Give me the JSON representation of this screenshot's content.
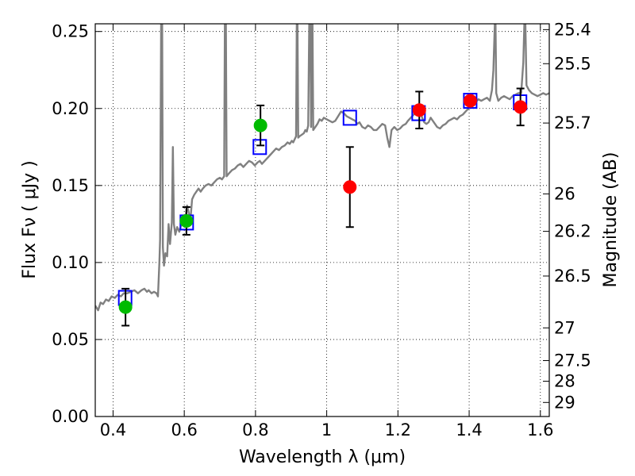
{
  "chart_data": {
    "type": "scatter",
    "xlabel": "Wavelength  λ (μm)",
    "ylabel": "Flux  Fν  ( μJy )",
    "y2label": "Magnitude (AB)",
    "xlim": [
      0.35,
      1.625
    ],
    "ylim": [
      0.0,
      0.255
    ],
    "x_ticks": [
      {
        "value": 0.4,
        "label": "0.4"
      },
      {
        "value": 0.6,
        "label": "0.6"
      },
      {
        "value": 0.8,
        "label": "0.8"
      },
      {
        "value": 1.0,
        "label": "1"
      },
      {
        "value": 1.2,
        "label": "1.2"
      },
      {
        "value": 1.4,
        "label": "1.4"
      },
      {
        "value": 1.6,
        "label": "1.6"
      }
    ],
    "y_ticks": [
      {
        "value": 0.0,
        "label": "0.00"
      },
      {
        "value": 0.05,
        "label": "0.05"
      },
      {
        "value": 0.1,
        "label": "0.10"
      },
      {
        "value": 0.15,
        "label": "0.15"
      },
      {
        "value": 0.2,
        "label": "0.20"
      },
      {
        "value": 0.25,
        "label": "0.25"
      }
    ],
    "magnitude_ticks": [
      {
        "mag": 25.4,
        "label": "25.4"
      },
      {
        "mag": 25.5,
        "label": "25.5"
      },
      {
        "mag": 25.7,
        "label": "25.7"
      },
      {
        "mag": 26.0,
        "label": "26"
      },
      {
        "mag": 26.2,
        "label": "26.2"
      },
      {
        "mag": 26.5,
        "label": "26.5"
      },
      {
        "mag": 27.0,
        "label": "27"
      },
      {
        "mag": 27.5,
        "label": "27.5"
      },
      {
        "mag": 28.0,
        "label": "28"
      },
      {
        "mag": 29.0,
        "label": "29"
      }
    ],
    "grid": true,
    "colors": {
      "spectrum": "#808080",
      "model_boxes": "#0000ff",
      "optical_points": "#00bb00",
      "infrared_points": "#ff0000",
      "error_bars": "#000000"
    },
    "series": [
      {
        "kind": "spectrum",
        "points": [
          [
            0.35,
            0.072
          ],
          [
            0.358,
            0.069
          ],
          [
            0.365,
            0.074
          ],
          [
            0.372,
            0.073
          ],
          [
            0.38,
            0.076
          ],
          [
            0.388,
            0.075
          ],
          [
            0.396,
            0.078
          ],
          [
            0.405,
            0.077
          ],
          [
            0.413,
            0.079
          ],
          [
            0.422,
            0.078
          ],
          [
            0.43,
            0.08
          ],
          [
            0.44,
            0.08
          ],
          [
            0.45,
            0.081
          ],
          [
            0.46,
            0.082
          ],
          [
            0.47,
            0.08
          ],
          [
            0.48,
            0.082
          ],
          [
            0.488,
            0.083
          ],
          [
            0.495,
            0.081
          ],
          [
            0.5,
            0.082
          ],
          [
            0.508,
            0.08
          ],
          [
            0.515,
            0.081
          ],
          [
            0.522,
            0.08
          ],
          [
            0.526,
            0.078
          ],
          [
            0.53,
            0.1
          ],
          [
            0.532,
            0.115
          ],
          [
            0.535,
            0.255
          ],
          [
            0.538,
            0.255
          ],
          [
            0.54,
            0.11
          ],
          [
            0.543,
            0.098
          ],
          [
            0.547,
            0.106
          ],
          [
            0.552,
            0.104
          ],
          [
            0.556,
            0.125
          ],
          [
            0.56,
            0.112
          ],
          [
            0.565,
            0.126
          ],
          [
            0.568,
            0.175
          ],
          [
            0.571,
            0.125
          ],
          [
            0.575,
            0.118
          ],
          [
            0.58,
            0.123
          ],
          [
            0.586,
            0.12
          ],
          [
            0.592,
            0.125
          ],
          [
            0.598,
            0.124
          ],
          [
            0.604,
            0.13
          ],
          [
            0.608,
            0.137
          ],
          [
            0.612,
            0.133
          ],
          [
            0.617,
            0.127
          ],
          [
            0.622,
            0.141
          ],
          [
            0.628,
            0.144
          ],
          [
            0.634,
            0.146
          ],
          [
            0.64,
            0.148
          ],
          [
            0.646,
            0.146
          ],
          [
            0.652,
            0.148
          ],
          [
            0.66,
            0.15
          ],
          [
            0.668,
            0.151
          ],
          [
            0.676,
            0.15
          ],
          [
            0.684,
            0.152
          ],
          [
            0.692,
            0.154
          ],
          [
            0.7,
            0.155
          ],
          [
            0.706,
            0.154
          ],
          [
            0.712,
            0.156
          ],
          [
            0.714,
            0.255
          ],
          [
            0.717,
            0.255
          ],
          [
            0.719,
            0.156
          ],
          [
            0.726,
            0.158
          ],
          [
            0.734,
            0.16
          ],
          [
            0.742,
            0.161
          ],
          [
            0.75,
            0.163
          ],
          [
            0.758,
            0.164
          ],
          [
            0.766,
            0.162
          ],
          [
            0.774,
            0.164
          ],
          [
            0.782,
            0.166
          ],
          [
            0.79,
            0.165
          ],
          [
            0.798,
            0.163
          ],
          [
            0.806,
            0.165
          ],
          [
            0.812,
            0.166
          ],
          [
            0.818,
            0.164
          ],
          [
            0.826,
            0.166
          ],
          [
            0.834,
            0.168
          ],
          [
            0.842,
            0.17
          ],
          [
            0.85,
            0.172
          ],
          [
            0.858,
            0.174
          ],
          [
            0.866,
            0.173
          ],
          [
            0.874,
            0.175
          ],
          [
            0.882,
            0.176
          ],
          [
            0.89,
            0.178
          ],
          [
            0.896,
            0.177
          ],
          [
            0.902,
            0.179
          ],
          [
            0.906,
            0.178
          ],
          [
            0.91,
            0.18
          ],
          [
            0.914,
            0.182
          ],
          [
            0.916,
            0.255
          ],
          [
            0.918,
            0.255
          ],
          [
            0.92,
            0.181
          ],
          [
            0.924,
            0.182
          ],
          [
            0.93,
            0.183
          ],
          [
            0.936,
            0.184
          ],
          [
            0.94,
            0.186
          ],
          [
            0.944,
            0.185
          ],
          [
            0.948,
            0.189
          ],
          [
            0.951,
            0.255
          ],
          [
            0.954,
            0.255
          ],
          [
            0.956,
            0.188
          ],
          [
            0.958,
            0.255
          ],
          [
            0.96,
            0.255
          ],
          [
            0.962,
            0.186
          ],
          [
            0.968,
            0.188
          ],
          [
            0.974,
            0.19
          ],
          [
            0.98,
            0.193
          ],
          [
            0.986,
            0.192
          ],
          [
            0.992,
            0.194
          ],
          [
            1.0,
            0.193
          ],
          [
            1.008,
            0.192
          ],
          [
            1.016,
            0.191
          ],
          [
            1.024,
            0.192
          ],
          [
            1.032,
            0.195
          ],
          [
            1.04,
            0.198
          ],
          [
            1.048,
            0.197
          ],
          [
            1.056,
            0.195
          ],
          [
            1.064,
            0.194
          ],
          [
            1.072,
            0.193
          ],
          [
            1.08,
            0.192
          ],
          [
            1.086,
            0.19
          ],
          [
            1.092,
            0.191
          ],
          [
            1.1,
            0.188
          ],
          [
            1.108,
            0.187
          ],
          [
            1.116,
            0.189
          ],
          [
            1.124,
            0.188
          ],
          [
            1.132,
            0.186
          ],
          [
            1.14,
            0.186
          ],
          [
            1.148,
            0.188
          ],
          [
            1.156,
            0.19
          ],
          [
            1.164,
            0.189
          ],
          [
            1.17,
            0.181
          ],
          [
            1.176,
            0.175
          ],
          [
            1.182,
            0.186
          ],
          [
            1.19,
            0.188
          ],
          [
            1.198,
            0.186
          ],
          [
            1.206,
            0.187
          ],
          [
            1.214,
            0.189
          ],
          [
            1.222,
            0.19
          ],
          [
            1.228,
            0.192
          ],
          [
            1.236,
            0.194
          ],
          [
            1.244,
            0.196
          ],
          [
            1.25,
            0.197
          ],
          [
            1.256,
            0.199
          ],
          [
            1.262,
            0.2
          ],
          [
            1.268,
            0.194
          ],
          [
            1.274,
            0.191
          ],
          [
            1.28,
            0.19
          ],
          [
            1.286,
            0.191
          ],
          [
            1.292,
            0.194
          ],
          [
            1.298,
            0.192
          ],
          [
            1.304,
            0.19
          ],
          [
            1.31,
            0.188
          ],
          [
            1.318,
            0.187
          ],
          [
            1.326,
            0.189
          ],
          [
            1.334,
            0.19
          ],
          [
            1.342,
            0.192
          ],
          [
            1.35,
            0.193
          ],
          [
            1.358,
            0.194
          ],
          [
            1.366,
            0.193
          ],
          [
            1.374,
            0.195
          ],
          [
            1.382,
            0.196
          ],
          [
            1.39,
            0.198
          ],
          [
            1.398,
            0.2
          ],
          [
            1.404,
            0.202
          ],
          [
            1.41,
            0.203
          ],
          [
            1.418,
            0.204
          ],
          [
            1.426,
            0.206
          ],
          [
            1.434,
            0.205
          ],
          [
            1.442,
            0.206
          ],
          [
            1.45,
            0.207
          ],
          [
            1.458,
            0.205
          ],
          [
            1.464,
            0.212
          ],
          [
            1.468,
            0.225
          ],
          [
            1.472,
            0.255
          ],
          [
            1.474,
            0.255
          ],
          [
            1.476,
            0.21
          ],
          [
            1.482,
            0.205
          ],
          [
            1.49,
            0.207
          ],
          [
            1.498,
            0.208
          ],
          [
            1.506,
            0.207
          ],
          [
            1.514,
            0.206
          ],
          [
            1.522,
            0.208
          ],
          [
            1.53,
            0.209
          ],
          [
            1.538,
            0.21
          ],
          [
            1.546,
            0.21
          ],
          [
            1.552,
            0.23
          ],
          [
            1.555,
            0.255
          ],
          [
            1.558,
            0.255
          ],
          [
            1.561,
            0.215
          ],
          [
            1.568,
            0.212
          ],
          [
            1.576,
            0.21
          ],
          [
            1.584,
            0.209
          ],
          [
            1.592,
            0.208
          ],
          [
            1.6,
            0.209
          ],
          [
            1.608,
            0.21
          ],
          [
            1.616,
            0.209
          ],
          [
            1.625,
            0.21
          ]
        ]
      },
      {
        "kind": "model_boxes",
        "points": [
          {
            "x": 0.434,
            "y": 0.077
          },
          {
            "x": 0.607,
            "y": 0.126
          },
          {
            "x": 0.812,
            "y": 0.175
          },
          {
            "x": 1.065,
            "y": 0.194
          },
          {
            "x": 1.258,
            "y": 0.197
          },
          {
            "x": 1.403,
            "y": 0.205
          },
          {
            "x": 1.543,
            "y": 0.204
          }
        ]
      },
      {
        "kind": "optical_points",
        "points": [
          {
            "x": 0.435,
            "y": 0.071,
            "err": 0.012
          },
          {
            "x": 0.606,
            "y": 0.127,
            "err": 0.009
          },
          {
            "x": 0.814,
            "y": 0.189,
            "err": 0.013
          }
        ]
      },
      {
        "kind": "infrared_points",
        "points": [
          {
            "x": 1.065,
            "y": 0.149,
            "err": 0.026
          },
          {
            "x": 1.26,
            "y": 0.199,
            "err": 0.012
          },
          {
            "x": 1.403,
            "y": 0.205,
            "err": 0.0
          },
          {
            "x": 1.544,
            "y": 0.201,
            "err": 0.012
          }
        ]
      }
    ]
  }
}
